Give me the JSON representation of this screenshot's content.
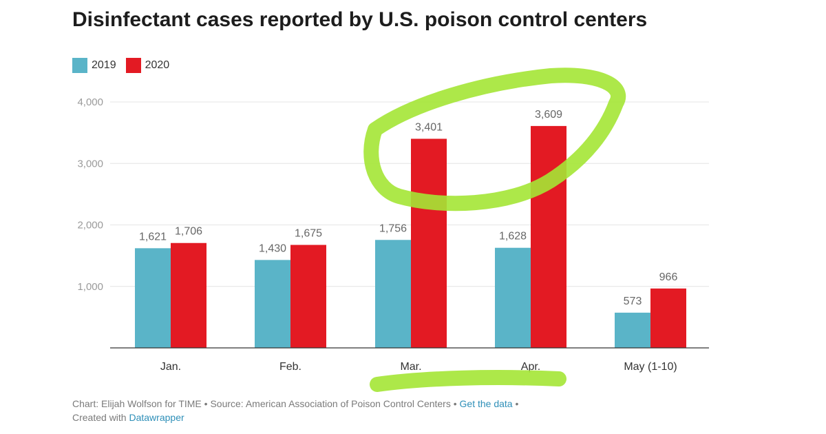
{
  "chart_data": {
    "type": "bar",
    "title": "Disinfectant cases reported by U.S. poison control centers",
    "categories": [
      "Jan.",
      "Feb.",
      "Mar.",
      "Apr.",
      "May (1-10)"
    ],
    "series": [
      {
        "name": "2019",
        "color": "#5ab4c8",
        "values": [
          1621,
          1430,
          1756,
          1628,
          573
        ],
        "labels": [
          "1,621",
          "1,430",
          "1,756",
          "1,628",
          "573"
        ]
      },
      {
        "name": "2020",
        "color": "#e31a23",
        "values": [
          1706,
          1675,
          3401,
          3609,
          966
        ],
        "labels": [
          "1,706",
          "1,675",
          "3,401",
          "3,609",
          "966"
        ]
      }
    ],
    "yticks": [
      1000,
      2000,
      3000,
      4000
    ],
    "ytick_labels": [
      "1,000",
      "2,000",
      "3,000",
      "4,000"
    ],
    "ylim": [
      0,
      4000
    ],
    "xlabel": "",
    "ylabel": "",
    "grid": true,
    "legend": "top-left",
    "annotation_color": "#a4e635"
  },
  "footer": {
    "credit": "Chart: Elijah Wolfson for TIME • Source: American Association of Poison Control Centers • ",
    "get_data": "Get the data",
    "sep": " •",
    "created_with": "Created with ",
    "tool": "Datawrapper"
  }
}
